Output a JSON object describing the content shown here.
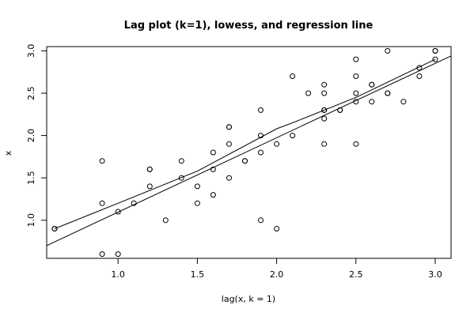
{
  "chart_data": {
    "type": "scatter",
    "title": "Lag plot (k=1), lowess, and regression line",
    "xlabel": "lag(x, k = 1)",
    "ylabel": "x",
    "xlim": [
      0.55,
      3.1
    ],
    "ylim": [
      0.55,
      3.05
    ],
    "xticks": [
      1.0,
      1.5,
      2.0,
      2.5,
      3.0
    ],
    "xtick_labels": [
      "1.0",
      "1.5",
      "2.0",
      "2.5",
      "3.0"
    ],
    "yticks": [
      1.0,
      1.5,
      2.0,
      2.5,
      3.0
    ],
    "ytick_labels": [
      "1.0",
      "1.5",
      "2.0",
      "2.5",
      "3.0"
    ],
    "grid": false,
    "points": [
      [
        0.6,
        0.9
      ],
      [
        0.6,
        0.9
      ],
      [
        0.9,
        1.7
      ],
      [
        0.9,
        1.2
      ],
      [
        0.9,
        0.6
      ],
      [
        1.0,
        1.1
      ],
      [
        1.0,
        0.6
      ],
      [
        1.1,
        1.2
      ],
      [
        1.2,
        1.6
      ],
      [
        1.2,
        1.6
      ],
      [
        1.2,
        1.4
      ],
      [
        1.3,
        1.0
      ],
      [
        1.4,
        1.7
      ],
      [
        1.4,
        1.5
      ],
      [
        1.5,
        1.4
      ],
      [
        1.5,
        1.2
      ],
      [
        1.6,
        1.8
      ],
      [
        1.6,
        1.6
      ],
      [
        1.6,
        1.3
      ],
      [
        1.7,
        2.1
      ],
      [
        1.7,
        2.1
      ],
      [
        1.7,
        1.9
      ],
      [
        1.7,
        1.5
      ],
      [
        1.8,
        1.7
      ],
      [
        1.8,
        1.7
      ],
      [
        1.9,
        2.3
      ],
      [
        1.9,
        2.0
      ],
      [
        1.9,
        1.8
      ],
      [
        1.9,
        1.0
      ],
      [
        2.0,
        1.9
      ],
      [
        2.0,
        0.9
      ],
      [
        2.1,
        2.7
      ],
      [
        2.1,
        2.0
      ],
      [
        2.2,
        2.5
      ],
      [
        2.3,
        2.6
      ],
      [
        2.3,
        2.5
      ],
      [
        2.3,
        2.3
      ],
      [
        2.3,
        2.3
      ],
      [
        2.3,
        2.2
      ],
      [
        2.3,
        1.9
      ],
      [
        2.4,
        2.3
      ],
      [
        2.4,
        2.3
      ],
      [
        2.5,
        2.9
      ],
      [
        2.5,
        2.7
      ],
      [
        2.5,
        2.5
      ],
      [
        2.5,
        2.4
      ],
      [
        2.5,
        1.9
      ],
      [
        2.6,
        2.6
      ],
      [
        2.6,
        2.6
      ],
      [
        2.6,
        2.4
      ],
      [
        2.7,
        3.0
      ],
      [
        2.7,
        2.5
      ],
      [
        2.7,
        2.5
      ],
      [
        2.8,
        2.4
      ],
      [
        2.9,
        2.8
      ],
      [
        2.9,
        2.7
      ],
      [
        3.0,
        3.0
      ],
      [
        3.0,
        3.0
      ],
      [
        3.0,
        2.9
      ]
    ],
    "series": [
      {
        "type": "lowess",
        "x": [
          0.6,
          1.0,
          1.5,
          2.0,
          2.1,
          2.5,
          3.0
        ],
        "y": [
          0.9,
          1.2,
          1.58,
          2.08,
          2.15,
          2.45,
          2.9
        ]
      },
      {
        "type": "regression",
        "x": [
          0.55,
          3.1
        ],
        "y": [
          0.7,
          2.94
        ]
      }
    ]
  }
}
